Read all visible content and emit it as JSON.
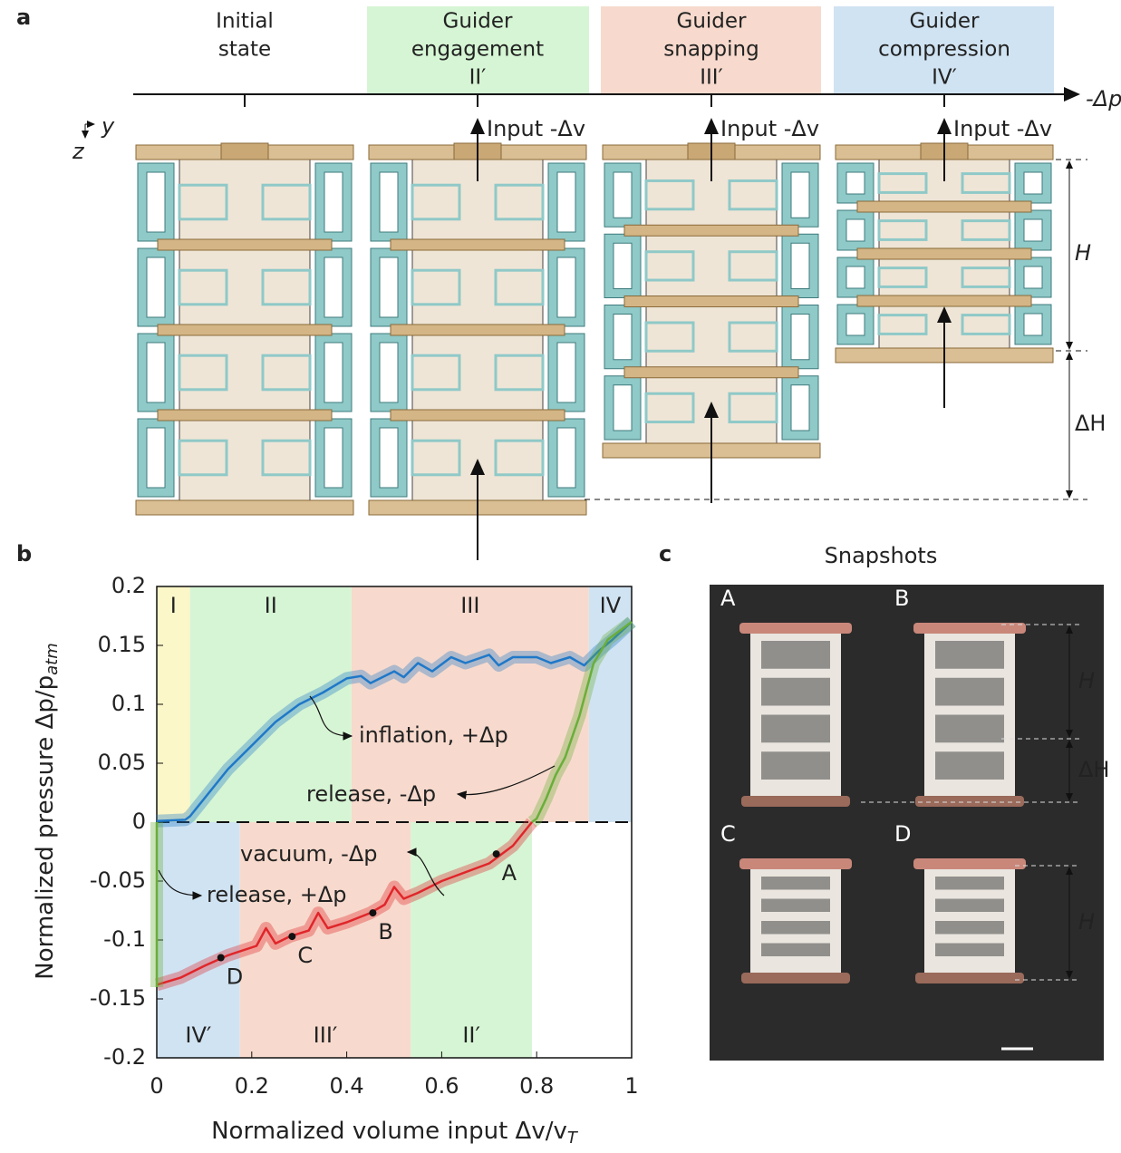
{
  "panel_labels": [
    "a",
    "b",
    "c"
  ],
  "panel_a": {
    "stages": [
      {
        "title": [
          "Initial",
          "state"
        ]
      },
      {
        "title": [
          "Guider",
          "engagement",
          "II′"
        ],
        "color": "#d6f5d4"
      },
      {
        "title": [
          "Guider",
          "snapping",
          "III′"
        ],
        "color": "#f7dacd"
      },
      {
        "title": [
          "Guider",
          "compression",
          "IV′"
        ],
        "color": "#d0e3f2"
      }
    ],
    "axis_label": "-Δp",
    "input_label": "Input -Δv",
    "coord_labels": [
      "y",
      "z"
    ],
    "dimension_labels": [
      "H",
      "ΔH"
    ]
  },
  "chart_data": {
    "type": "line",
    "x_label": {
      "text": "Normalized volume input Δv/v",
      "subscript": "T"
    },
    "y_label": {
      "text": "Normalized pressure Δp/p",
      "subscript": "atm"
    },
    "xlim": [
      0,
      1
    ],
    "xticks": [
      0,
      0.2,
      0.4,
      0.6,
      0.8,
      1
    ],
    "ylim": [
      -0.2,
      0.2
    ],
    "yticks": [
      0.2,
      0.15,
      0.1,
      0.05,
      0,
      -0.05,
      -0.1,
      -0.15,
      -0.2
    ],
    "zero_line": true,
    "regions": [
      {
        "label": "I",
        "x": [
          0,
          0.07
        ],
        "y": [
          0,
          0.2
        ],
        "color": "#fbf7c8",
        "position": "top"
      },
      {
        "label": "II",
        "x": [
          0.07,
          0.41
        ],
        "y": [
          0,
          0.2
        ],
        "color": "#d6f5d4",
        "position": "top"
      },
      {
        "label": "III",
        "x": [
          0.41,
          0.91
        ],
        "y": [
          0,
          0.2
        ],
        "color": "#f7dacd",
        "position": "top"
      },
      {
        "label": "IV",
        "x": [
          0.91,
          1
        ],
        "y": [
          0,
          0.2
        ],
        "color": "#d0e3f2",
        "position": "top"
      },
      {
        "label": "IV′",
        "x": [
          0,
          0.175
        ],
        "y": [
          -0.2,
          0
        ],
        "color": "#d0e3f2",
        "position": "bottom"
      },
      {
        "label": "III′",
        "x": [
          0.175,
          0.535
        ],
        "y": [
          -0.2,
          0
        ],
        "color": "#f7dacd",
        "position": "bottom"
      },
      {
        "label": "II′",
        "x": [
          0.535,
          0.79
        ],
        "y": [
          -0.2,
          0
        ],
        "color": "#d6f5d4",
        "position": "bottom"
      }
    ],
    "series": [
      {
        "name": "inflation, +Δp",
        "color": "#1f78c8",
        "x": [
          0,
          0.06,
          0.07,
          0.1,
          0.15,
          0.2,
          0.25,
          0.3,
          0.35,
          0.4,
          0.43,
          0.45,
          0.5,
          0.52,
          0.55,
          0.58,
          0.62,
          0.65,
          0.7,
          0.72,
          0.75,
          0.8,
          0.83,
          0.87,
          0.9,
          0.93,
          0.96,
          1
        ],
        "values": [
          0.001,
          0.002,
          0.005,
          0.02,
          0.045,
          0.065,
          0.085,
          0.1,
          0.11,
          0.122,
          0.124,
          0.118,
          0.128,
          0.123,
          0.135,
          0.128,
          0.14,
          0.135,
          0.142,
          0.133,
          0.14,
          0.14,
          0.135,
          0.14,
          0.133,
          0.145,
          0.155,
          0.17
        ]
      },
      {
        "name": "release, -Δp",
        "color": "#6aae3a",
        "x": [
          1,
          0.95,
          0.92,
          0.89,
          0.86,
          0.84,
          0.82,
          0.8,
          0.79
        ],
        "values": [
          0.17,
          0.155,
          0.135,
          0.09,
          0.055,
          0.04,
          0.02,
          0.003,
          0
        ]
      },
      {
        "name": "vacuum, -Δp",
        "color": "#e0262a",
        "x": [
          0.79,
          0.75,
          0.7,
          0.6,
          0.55,
          0.52,
          0.5,
          0.48,
          0.45,
          0.4,
          0.36,
          0.34,
          0.32,
          0.28,
          0.25,
          0.23,
          0.21,
          0.15,
          0.1,
          0.05,
          0
        ],
        "values": [
          0,
          -0.02,
          -0.035,
          -0.05,
          -0.06,
          -0.065,
          -0.055,
          -0.07,
          -0.077,
          -0.085,
          -0.09,
          -0.077,
          -0.092,
          -0.097,
          -0.103,
          -0.09,
          -0.105,
          -0.113,
          -0.122,
          -0.132,
          -0.138
        ]
      },
      {
        "name": "release, +Δp",
        "color": "#6aae3a",
        "x": [
          0,
          0,
          0
        ],
        "values": [
          -0.14,
          -0.07,
          0
        ]
      }
    ],
    "points": [
      {
        "label": "A",
        "x": 0.715,
        "y": -0.027
      },
      {
        "label": "B",
        "x": 0.455,
        "y": -0.077
      },
      {
        "label": "C",
        "x": 0.285,
        "y": -0.097
      },
      {
        "label": "D",
        "x": 0.135,
        "y": -0.115
      }
    ]
  },
  "panel_c": {
    "title": "Snapshots",
    "labels": [
      "A",
      "B",
      "C",
      "D"
    ],
    "dimension_labels": [
      "H",
      "ΔH",
      "H"
    ]
  }
}
